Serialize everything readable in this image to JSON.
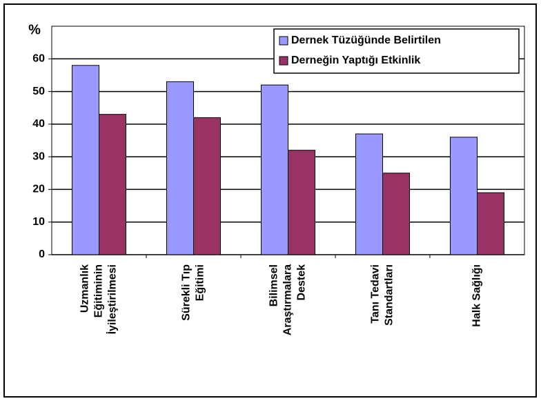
{
  "chart_data": {
    "type": "bar",
    "y_label": "%",
    "categories": [
      [
        "Uzmanlık",
        "Eğitiminin",
        "İyileştirilmesi"
      ],
      [
        "Sürekli Tıp",
        "Eğitimi"
      ],
      [
        "Bilimsel",
        "Araştırmalara",
        "Destek"
      ],
      [
        "Tanı Tedavi",
        "Standartları"
      ],
      [
        "Halk Sağlığı"
      ]
    ],
    "series": [
      {
        "name": "Dernek Tüzüğünde Belirtilen",
        "color": "#9999ff",
        "values": [
          58,
          53,
          52,
          37,
          36
        ]
      },
      {
        "name": "Derneğin Yaptığı Etkinlik",
        "color": "#993366",
        "values": [
          43,
          42,
          32,
          25,
          19
        ]
      }
    ],
    "ylim": [
      0,
      70
    ],
    "yticks": [
      0,
      10,
      20,
      30,
      40,
      50,
      60
    ],
    "grid": true,
    "legend": "top-right"
  }
}
